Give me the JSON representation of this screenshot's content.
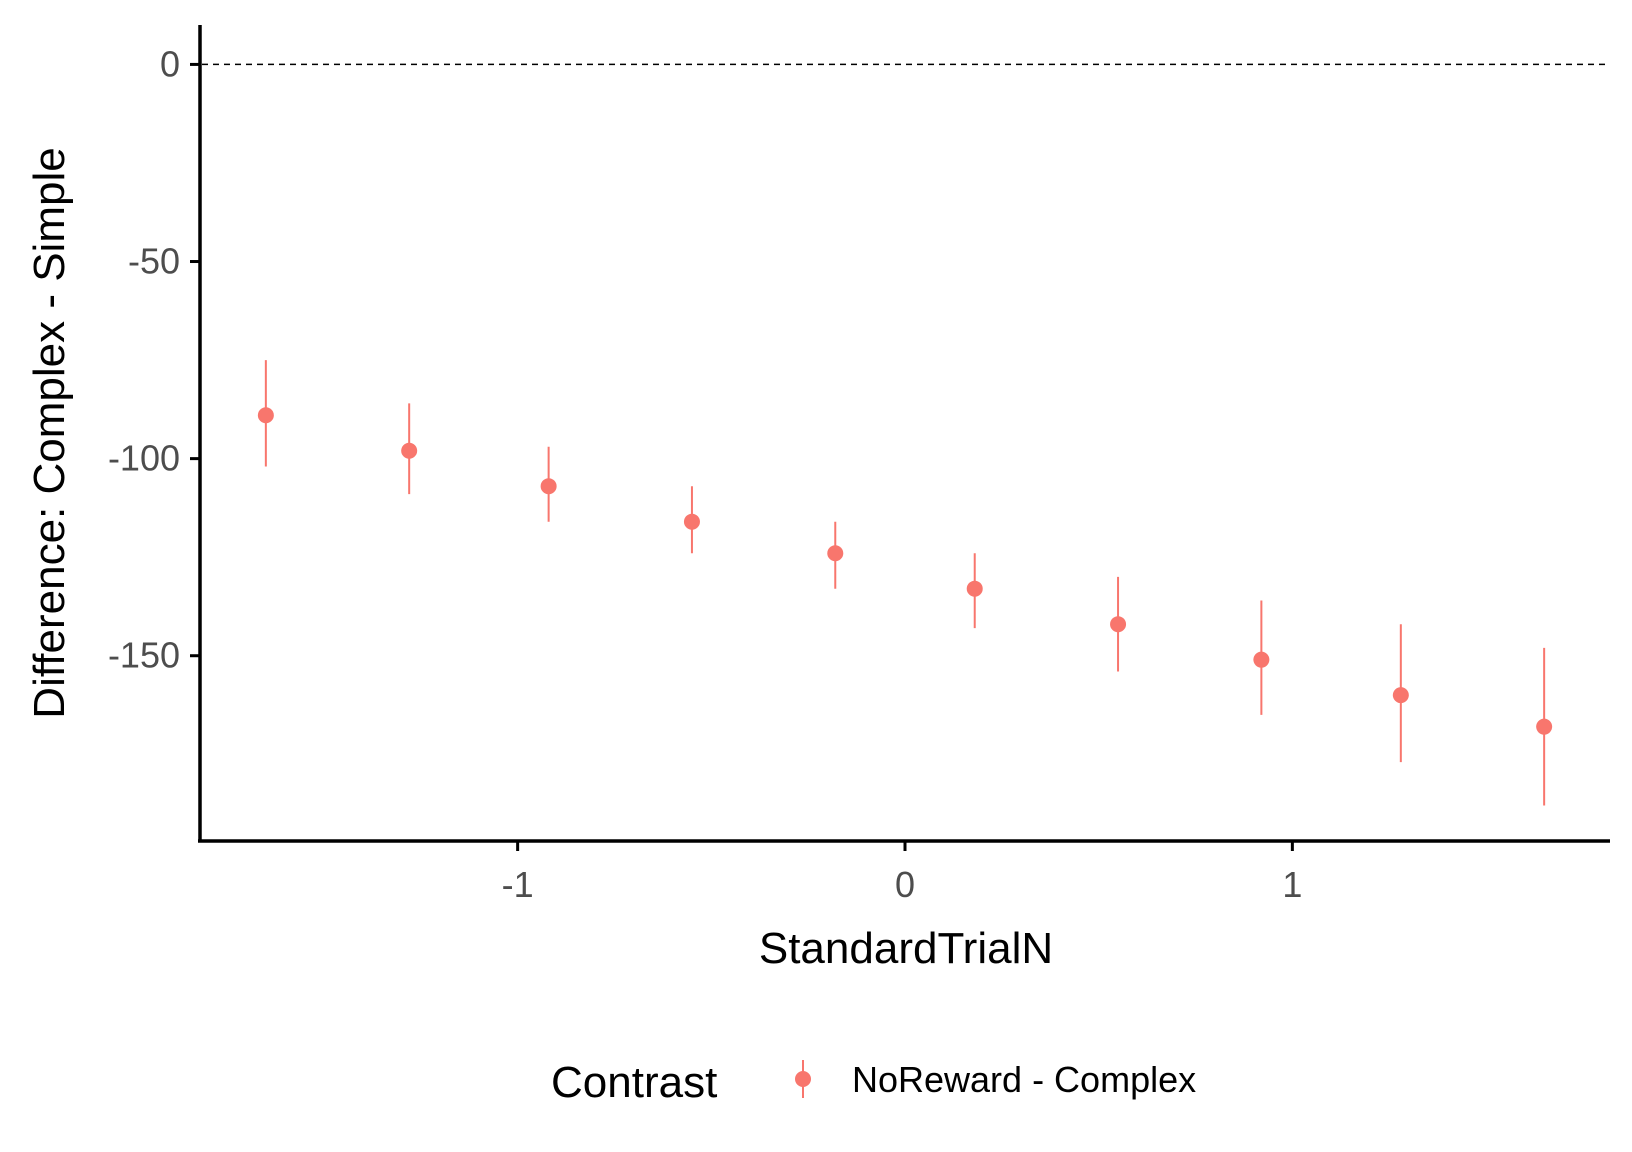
{
  "chart_data": {
    "type": "scatter",
    "title": "",
    "xlabel": "StandardTrialN",
    "ylabel": "Difference: Complex - Simple",
    "xlim": [
      -1.82,
      1.82
    ],
    "ylim": [
      -197,
      10
    ],
    "x_ticks": [
      -1,
      0,
      1
    ],
    "x_tick_labels": [
      "-1",
      "0",
      "1"
    ],
    "y_ticks": [
      0,
      -50,
      -100,
      -150
    ],
    "y_tick_labels": [
      "0",
      "-50",
      "-100",
      "-150"
    ],
    "reference_line": {
      "y": 0,
      "style": "dashed"
    },
    "grid": false,
    "legend": {
      "title": "Contrast",
      "position": "bottom"
    },
    "colors": {
      "series": "#F8766D",
      "axis": "#000000",
      "tick_text": "#4d4d4d"
    },
    "series": [
      {
        "name": "NoReward - Complex",
        "points": [
          {
            "x": -1.65,
            "y": -89,
            "lower": -102,
            "upper": -75
          },
          {
            "x": -1.28,
            "y": -98,
            "lower": -109,
            "upper": -86
          },
          {
            "x": -0.92,
            "y": -107,
            "lower": -116,
            "upper": -97
          },
          {
            "x": -0.55,
            "y": -116,
            "lower": -124,
            "upper": -107
          },
          {
            "x": -0.18,
            "y": -124,
            "lower": -133,
            "upper": -116
          },
          {
            "x": 0.18,
            "y": -133,
            "lower": -143,
            "upper": -124
          },
          {
            "x": 0.55,
            "y": -142,
            "lower": -154,
            "upper": -130
          },
          {
            "x": 0.92,
            "y": -151,
            "lower": -165,
            "upper": -136
          },
          {
            "x": 1.28,
            "y": -160,
            "lower": -177,
            "upper": -142
          },
          {
            "x": 1.65,
            "y": -168,
            "lower": -188,
            "upper": -148
          }
        ]
      }
    ]
  }
}
